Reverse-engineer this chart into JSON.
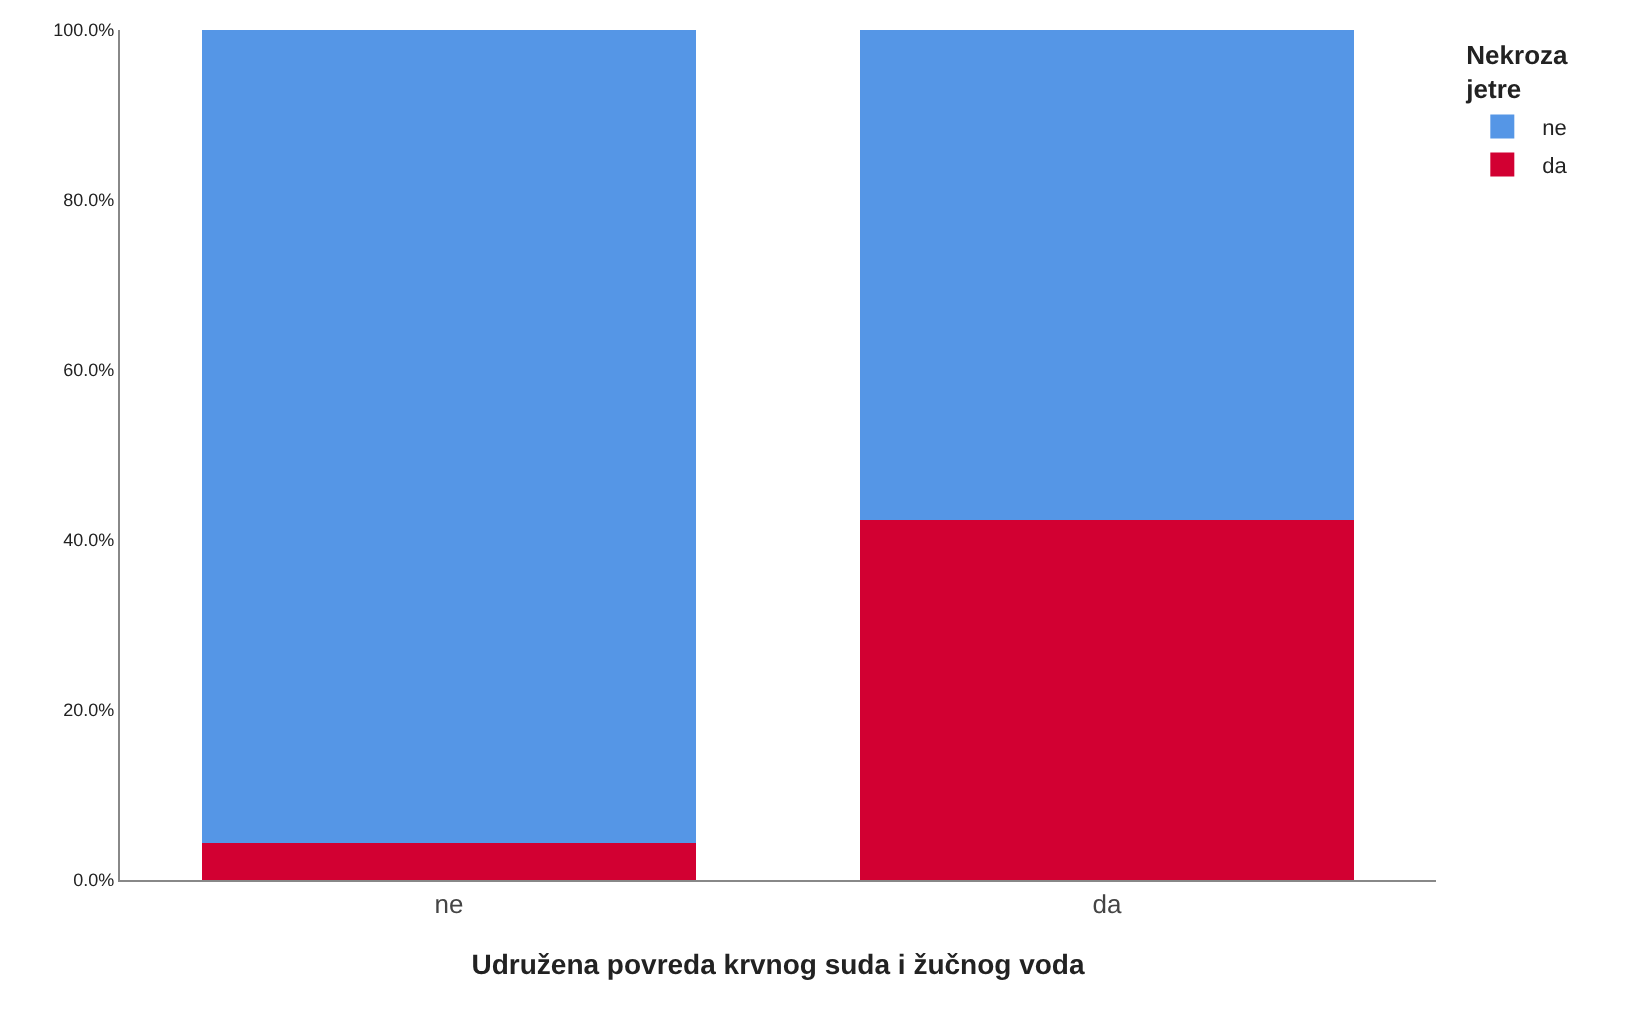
{
  "chart_data": {
    "type": "bar",
    "stacked": true,
    "xlabel": "Udružena povreda krvnog suda i žučnog voda",
    "legend_title": "Nekroza jetre",
    "categories": [
      "ne",
      "da"
    ],
    "series": [
      {
        "name": "da",
        "color": "#d20032",
        "values": [
          4.3,
          42.3
        ]
      },
      {
        "name": "ne",
        "color": "#5596e6",
        "values": [
          95.7,
          57.7
        ]
      }
    ],
    "ylim": [
      0,
      100
    ],
    "yticks": [
      {
        "value": 0,
        "label": "0.0%"
      },
      {
        "value": 20,
        "label": "20.0%"
      },
      {
        "value": 40,
        "label": "40.0%"
      },
      {
        "value": 60,
        "label": "60.0%"
      },
      {
        "value": 80,
        "label": "80.0%"
      },
      {
        "value": 100,
        "label": "100.0%"
      }
    ],
    "grid": false,
    "legend": "top right"
  }
}
